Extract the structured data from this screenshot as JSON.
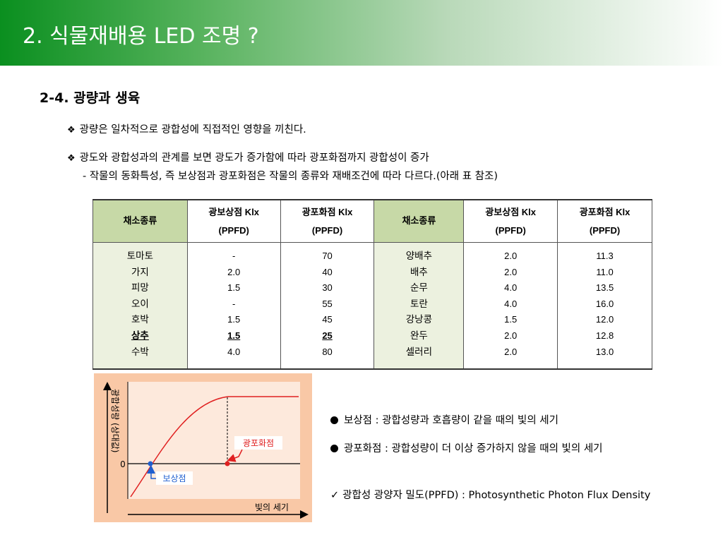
{
  "header": {
    "title": "2. 식물재배용 LED 조명 ?"
  },
  "section": {
    "heading": "2-4. 광량과 생육"
  },
  "bullets": [
    {
      "marker": "❖",
      "text": "광량은 일차적으로 광합성에 직접적인 영향을 끼친다."
    },
    {
      "marker": "❖",
      "text": "광도와 광합성과의 관계를 보면 광도가 증가함에 따라 광포화점까지 광합성이 증가"
    },
    {
      "marker": "",
      "text": "- 작물의 동화특성, 즉 보상점과 광포화점은 작물의 종류와 재배조건에 따라 다르다.(아래 표 참조)"
    }
  ],
  "table": {
    "headers": {
      "crop": "채소종류",
      "compensation_line1": "광보상점 Klx",
      "compensation_line2": "(PPFD)",
      "saturation_line1": "광포화점 Klx",
      "saturation_line2": "(PPFD)"
    },
    "left": {
      "crops": [
        "토마토",
        "가지",
        "피망",
        "오이",
        "호박",
        "상추",
        "수박"
      ],
      "compensation": [
        "-",
        "2.0",
        "1.5",
        "-",
        "1.5",
        "1.5",
        "4.0"
      ],
      "saturation": [
        "70",
        "40",
        "30",
        "55",
        "45",
        "25",
        "80"
      ],
      "highlight_row": 5
    },
    "right": {
      "crops": [
        "양배추",
        "배추",
        "순무",
        "토란",
        "강낭콩",
        "완두",
        "셀러리"
      ],
      "compensation": [
        "2.0",
        "2.0",
        "4.0",
        "4.0",
        "1.5",
        "2.0",
        "2.0"
      ],
      "saturation": [
        "11.3",
        "11.0",
        "13.5",
        "16.0",
        "12.0",
        "12.8",
        "13.0"
      ]
    }
  },
  "graph": {
    "y_axis_label": "광합성량 (상대값)",
    "x_axis_label": "빛의 세기",
    "zero_label": "0",
    "saturation_label": "광포화점",
    "compensation_label": "보상점",
    "colors": {
      "curve": "#e02020",
      "compensation_point": "#1f5fd0",
      "saturation_point": "#e02020",
      "box": "#f9c8a6",
      "plot": "#fde9dc"
    }
  },
  "legend": [
    {
      "text": "보상점 : 광합성량과 호흡량이 같을 때의 빛의 세기"
    },
    {
      "text": "광포화점 : 광합성량이 더 이상 증가하지 않을 때의 빛의 세기"
    }
  ],
  "note": {
    "marker": "✓",
    "text": "광합성 광양자 밀도(PPFD) : Photosynthetic Photon Flux Density"
  }
}
